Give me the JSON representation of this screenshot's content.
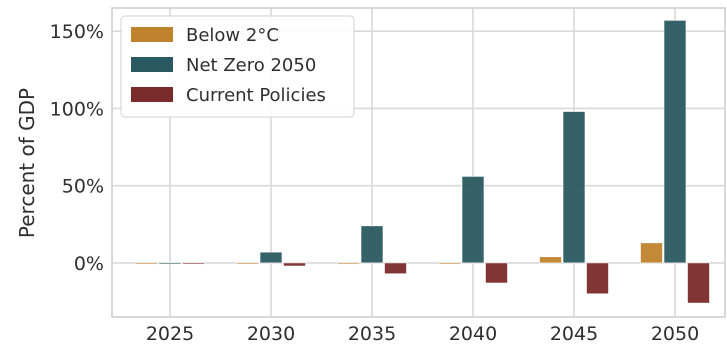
{
  "chart_data": {
    "type": "bar",
    "title": "",
    "xlabel": "",
    "ylabel": "Percent of GDP",
    "categories": [
      "2025",
      "2030",
      "2035",
      "2040",
      "2045",
      "2050"
    ],
    "y_ticks": [
      "0%",
      "50%",
      "100%",
      "150%"
    ],
    "y_tick_values": [
      0,
      50,
      100,
      150
    ],
    "ylim": [
      -35,
      165
    ],
    "grid": true,
    "legend_position": "top-left",
    "series": [
      {
        "name": "Below 2°C",
        "color": "#c0832d",
        "values": [
          0,
          0,
          0,
          0,
          4,
          13
        ]
      },
      {
        "name": "Net Zero 2050",
        "color": "#2a5a61",
        "values": [
          0,
          7,
          24,
          56,
          98,
          157
        ]
      },
      {
        "name": "Current Policies",
        "color": "#7a2a2a",
        "values": [
          0,
          -2,
          -7,
          -13,
          -20,
          -26
        ]
      }
    ]
  }
}
